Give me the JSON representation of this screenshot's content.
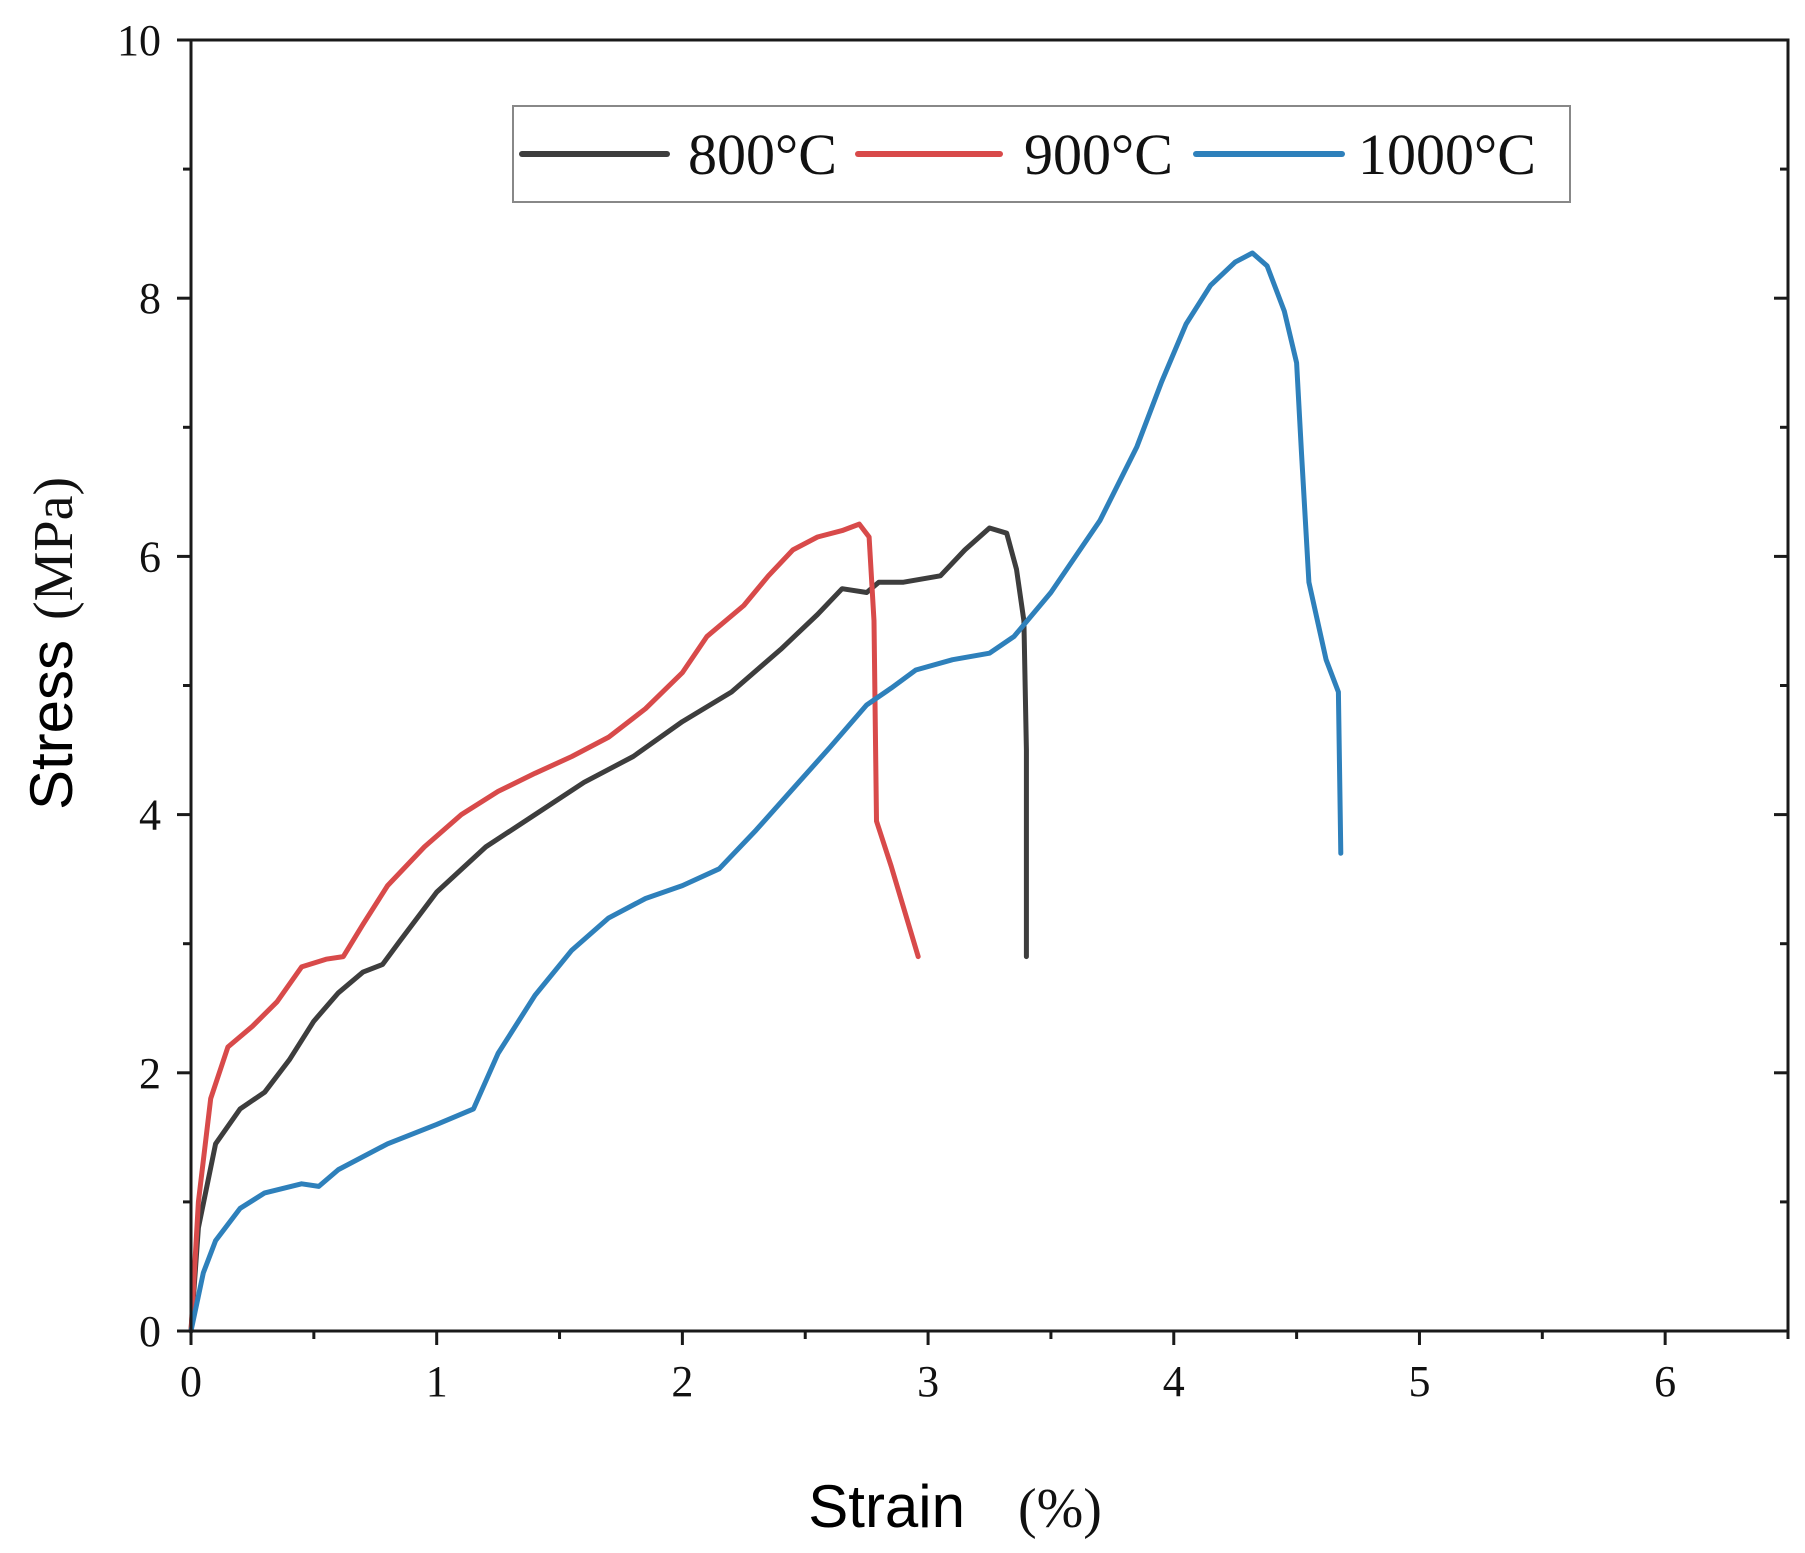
{
  "chart_data": {
    "type": "line",
    "title": "",
    "xlabel": "Strain (%)",
    "xlabel_parts": {
      "word": "Strain",
      "unit": "(%)"
    },
    "ylabel": "Stress (MPa)",
    "ylabel_parts": {
      "word": "Stress",
      "unit": "(MPa)"
    },
    "xlim": [
      0,
      6.5
    ],
    "ylim": [
      0,
      10
    ],
    "xticks": [
      0,
      1,
      2,
      3,
      4,
      5,
      6
    ],
    "yticks": [
      0,
      2,
      4,
      6,
      8,
      10
    ],
    "x_minor_step": 0.5,
    "y_minor_step": 1,
    "legend_position": "top-center",
    "series": [
      {
        "name": "800°C",
        "color": "#3d3d3d",
        "points": [
          [
            0,
            0
          ],
          [
            0.03,
            0.8
          ],
          [
            0.1,
            1.45
          ],
          [
            0.2,
            1.72
          ],
          [
            0.3,
            1.85
          ],
          [
            0.4,
            2.1
          ],
          [
            0.5,
            2.4
          ],
          [
            0.6,
            2.62
          ],
          [
            0.7,
            2.78
          ],
          [
            0.78,
            2.84
          ],
          [
            0.85,
            3.02
          ],
          [
            1.0,
            3.4
          ],
          [
            1.2,
            3.75
          ],
          [
            1.4,
            4.0
          ],
          [
            1.6,
            4.25
          ],
          [
            1.8,
            4.45
          ],
          [
            2.0,
            4.72
          ],
          [
            2.2,
            4.95
          ],
          [
            2.4,
            5.28
          ],
          [
            2.55,
            5.55
          ],
          [
            2.65,
            5.75
          ],
          [
            2.75,
            5.72
          ],
          [
            2.8,
            5.8
          ],
          [
            2.9,
            5.8
          ],
          [
            3.05,
            5.85
          ],
          [
            3.15,
            6.05
          ],
          [
            3.25,
            6.22
          ],
          [
            3.32,
            6.18
          ],
          [
            3.36,
            5.9
          ],
          [
            3.39,
            5.5
          ],
          [
            3.4,
            4.5
          ],
          [
            3.4,
            2.9
          ]
        ]
      },
      {
        "name": "900°C",
        "color": "#d84a4a",
        "points": [
          [
            0,
            0
          ],
          [
            0.03,
            1.0
          ],
          [
            0.08,
            1.8
          ],
          [
            0.15,
            2.2
          ],
          [
            0.25,
            2.36
          ],
          [
            0.35,
            2.55
          ],
          [
            0.45,
            2.82
          ],
          [
            0.55,
            2.88
          ],
          [
            0.62,
            2.9
          ],
          [
            0.7,
            3.15
          ],
          [
            0.8,
            3.45
          ],
          [
            0.95,
            3.75
          ],
          [
            1.1,
            4.0
          ],
          [
            1.25,
            4.18
          ],
          [
            1.4,
            4.32
          ],
          [
            1.55,
            4.45
          ],
          [
            1.7,
            4.6
          ],
          [
            1.85,
            4.82
          ],
          [
            2.0,
            5.1
          ],
          [
            2.1,
            5.38
          ],
          [
            2.25,
            5.62
          ],
          [
            2.35,
            5.85
          ],
          [
            2.45,
            6.05
          ],
          [
            2.55,
            6.15
          ],
          [
            2.65,
            6.2
          ],
          [
            2.72,
            6.25
          ],
          [
            2.76,
            6.15
          ],
          [
            2.78,
            5.5
          ],
          [
            2.79,
            3.95
          ],
          [
            2.85,
            3.6
          ],
          [
            2.96,
            2.9
          ]
        ]
      },
      {
        "name": "1000°C",
        "color": "#2e80bb",
        "points": [
          [
            0,
            0
          ],
          [
            0.05,
            0.45
          ],
          [
            0.1,
            0.7
          ],
          [
            0.2,
            0.95
          ],
          [
            0.3,
            1.07
          ],
          [
            0.45,
            1.14
          ],
          [
            0.52,
            1.12
          ],
          [
            0.6,
            1.25
          ],
          [
            0.8,
            1.45
          ],
          [
            1.0,
            1.6
          ],
          [
            1.15,
            1.72
          ],
          [
            1.25,
            2.15
          ],
          [
            1.4,
            2.6
          ],
          [
            1.55,
            2.95
          ],
          [
            1.7,
            3.2
          ],
          [
            1.85,
            3.35
          ],
          [
            2.0,
            3.45
          ],
          [
            2.15,
            3.58
          ],
          [
            2.3,
            3.88
          ],
          [
            2.45,
            4.2
          ],
          [
            2.6,
            4.52
          ],
          [
            2.75,
            4.85
          ],
          [
            2.85,
            4.98
          ],
          [
            2.95,
            5.12
          ],
          [
            3.1,
            5.2
          ],
          [
            3.25,
            5.25
          ],
          [
            3.35,
            5.38
          ],
          [
            3.5,
            5.72
          ],
          [
            3.7,
            6.28
          ],
          [
            3.85,
            6.85
          ],
          [
            3.95,
            7.35
          ],
          [
            4.05,
            7.8
          ],
          [
            4.15,
            8.1
          ],
          [
            4.25,
            8.28
          ],
          [
            4.32,
            8.35
          ],
          [
            4.38,
            8.25
          ],
          [
            4.45,
            7.9
          ],
          [
            4.5,
            7.5
          ],
          [
            4.52,
            6.8
          ],
          [
            4.55,
            5.8
          ],
          [
            4.62,
            5.2
          ],
          [
            4.67,
            4.95
          ],
          [
            4.68,
            3.7
          ]
        ]
      }
    ]
  }
}
